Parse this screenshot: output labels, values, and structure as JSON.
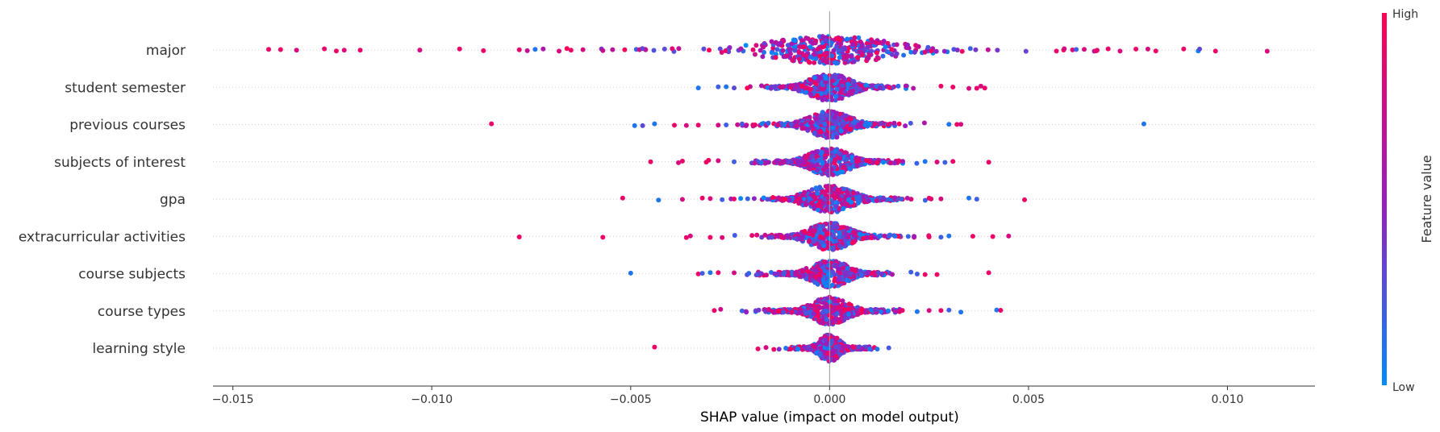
{
  "chart_data": {
    "type": "scatter",
    "title": "",
    "xlabel": "SHAP value (impact on model output)",
    "ylabel": "",
    "xlim": [
      -0.0155,
      0.0122
    ],
    "x_ticks": [
      -0.015,
      -0.01,
      -0.005,
      0.0,
      0.005,
      0.01
    ],
    "x_tick_labels": [
      "−0.015",
      "−0.010",
      "−0.005",
      "0.000",
      "0.005",
      "0.010"
    ],
    "grid": false,
    "zero_line": true,
    "colorbar": {
      "title": "Feature value",
      "high_label": "High",
      "low_label": "Low",
      "high_color": "#ff0052",
      "mid_color": "#9a1bbf",
      "low_color": "#008bfb"
    },
    "features": [
      {
        "name": "major",
        "spread": 0.0032,
        "core_width": 0.0008,
        "outliers": [
          [
            -0.0141,
            0.9
          ],
          [
            -0.0138,
            0.9
          ],
          [
            -0.0134,
            0.8
          ],
          [
            -0.0127,
            0.9
          ],
          [
            -0.0124,
            0.9
          ],
          [
            -0.0122,
            0.8
          ],
          [
            -0.0118,
            0.9
          ],
          [
            -0.0103,
            0.8
          ],
          [
            -0.0093,
            0.9
          ],
          [
            -0.0087,
            0.9
          ],
          [
            -0.0078,
            0.9
          ],
          [
            -0.0076,
            0.7
          ],
          [
            -0.0074,
            0.1
          ],
          [
            -0.0072,
            0.6
          ],
          [
            -0.0068,
            0.8
          ],
          [
            -0.0065,
            0.9
          ],
          [
            -0.0062,
            0.8
          ],
          [
            -0.0057,
            0.7
          ],
          [
            0.0057,
            0.9
          ],
          [
            0.0059,
            0.8
          ],
          [
            0.0062,
            0.2
          ],
          [
            0.0064,
            0.8
          ],
          [
            0.0067,
            0.9
          ],
          [
            0.007,
            0.9
          ],
          [
            0.0073,
            0.8
          ],
          [
            0.0077,
            0.9
          ],
          [
            0.008,
            0.8
          ],
          [
            0.0082,
            0.9
          ],
          [
            0.0089,
            0.9
          ],
          [
            0.0093,
            0.3
          ],
          [
            0.0097,
            0.9
          ],
          [
            0.011,
            0.8
          ]
        ]
      },
      {
        "name": "student semester",
        "spread": 0.001,
        "core_width": 0.0007,
        "outliers": [
          [
            -0.0033,
            0.1
          ],
          [
            -0.0028,
            0.2
          ],
          [
            -0.0026,
            0.1
          ],
          [
            -0.0024,
            0.3
          ],
          [
            0.0028,
            0.9
          ],
          [
            0.0031,
            0.9
          ],
          [
            0.0035,
            0.8
          ],
          [
            0.0037,
            0.9
          ],
          [
            0.0038,
            0.8
          ],
          [
            0.0039,
            0.9
          ]
        ]
      },
      {
        "name": "previous courses",
        "spread": 0.001,
        "core_width": 0.0007,
        "outliers": [
          [
            -0.0085,
            0.9
          ],
          [
            -0.0049,
            0.1
          ],
          [
            -0.0047,
            0.3
          ],
          [
            -0.0044,
            0.1
          ],
          [
            -0.0039,
            0.9
          ],
          [
            -0.0036,
            0.8
          ],
          [
            -0.0033,
            0.9
          ],
          [
            -0.0028,
            0.8
          ],
          [
            -0.0026,
            0.2
          ],
          [
            0.003,
            0.1
          ],
          [
            0.0032,
            0.9
          ],
          [
            0.0033,
            0.8
          ],
          [
            0.0079,
            0.1
          ]
        ]
      },
      {
        "name": "subjects of interest",
        "spread": 0.001,
        "core_width": 0.0007,
        "outliers": [
          [
            -0.0045,
            0.9
          ],
          [
            -0.0038,
            0.8
          ],
          [
            -0.0037,
            0.9
          ],
          [
            -0.0031,
            0.9
          ],
          [
            -0.0028,
            0.8
          ],
          [
            -0.0024,
            0.2
          ],
          [
            0.0024,
            0.1
          ],
          [
            0.0027,
            0.8
          ],
          [
            0.0029,
            0.2
          ],
          [
            0.0031,
            0.9
          ],
          [
            0.004,
            0.9
          ]
        ]
      },
      {
        "name": "gpa",
        "spread": 0.0011,
        "core_width": 0.0007,
        "outliers": [
          [
            -0.0052,
            0.9
          ],
          [
            -0.0043,
            0.1
          ],
          [
            -0.0037,
            0.8
          ],
          [
            -0.0032,
            0.9
          ],
          [
            -0.003,
            0.8
          ],
          [
            -0.0027,
            0.2
          ],
          [
            -0.0024,
            0.9
          ],
          [
            0.0025,
            0.9
          ],
          [
            0.0028,
            0.8
          ],
          [
            0.0035,
            0.1
          ],
          [
            0.0037,
            0.2
          ],
          [
            0.0049,
            0.9
          ]
        ]
      },
      {
        "name": "extracurricular activities",
        "spread": 0.001,
        "core_width": 0.0007,
        "outliers": [
          [
            -0.0078,
            0.9
          ],
          [
            -0.0057,
            0.9
          ],
          [
            -0.0036,
            0.9
          ],
          [
            -0.0035,
            0.8
          ],
          [
            -0.003,
            0.9
          ],
          [
            -0.0027,
            0.8
          ],
          [
            0.0025,
            0.9
          ],
          [
            0.0028,
            0.2
          ],
          [
            0.003,
            0.1
          ],
          [
            0.0036,
            0.9
          ],
          [
            0.0041,
            0.9
          ],
          [
            0.0045,
            0.8
          ]
        ]
      },
      {
        "name": "course subjects",
        "spread": 0.0009,
        "core_width": 0.0007,
        "outliers": [
          [
            -0.005,
            0.1
          ],
          [
            -0.0033,
            0.9
          ],
          [
            -0.0032,
            0.2
          ],
          [
            -0.003,
            0.1
          ],
          [
            -0.0028,
            0.9
          ],
          [
            -0.0024,
            0.8
          ],
          [
            0.0022,
            0.2
          ],
          [
            0.0024,
            0.9
          ],
          [
            0.0027,
            0.9
          ],
          [
            0.004,
            0.9
          ]
        ]
      },
      {
        "name": "course types",
        "spread": 0.0009,
        "core_width": 0.0007,
        "outliers": [
          [
            -0.0029,
            0.9
          ],
          [
            -0.0022,
            0.2
          ],
          [
            0.0022,
            0.1
          ],
          [
            0.0025,
            0.8
          ],
          [
            0.0028,
            0.9
          ],
          [
            0.003,
            0.2
          ],
          [
            0.0033,
            0.1
          ],
          [
            0.0042,
            0.1
          ],
          [
            0.0043,
            0.9
          ]
        ]
      },
      {
        "name": "learning style",
        "spread": 0.0005,
        "core_width": 0.0004,
        "outliers": [
          [
            -0.0044,
            0.9
          ],
          [
            -0.0018,
            0.9
          ],
          [
            -0.0016,
            0.8
          ],
          [
            -0.0014,
            0.9
          ],
          [
            -0.0011,
            0.1
          ],
          [
            0.001,
            0.1
          ],
          [
            0.0012,
            0.1
          ]
        ]
      }
    ]
  }
}
